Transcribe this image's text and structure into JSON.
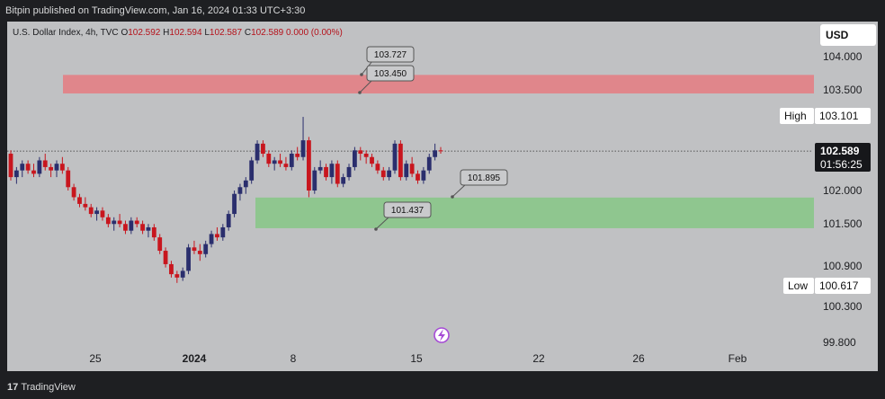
{
  "publisher_line": "Bitpin published on TradingView.com, Jan 16, 2024 01:33 UTC+3:30",
  "legend": {
    "symbol": "U.S. Dollar Index, 4h, TVC",
    "open_key": "O",
    "open": "102.592",
    "high_key": "H",
    "high": "102.594",
    "low_key": "L",
    "low": "102.587",
    "close_key": "C",
    "close": "102.589",
    "change": "0.000 (0.00%)"
  },
  "currency": "USD",
  "footer": {
    "logo_mark": "17",
    "logo_text": "TradingView"
  },
  "price_badges": {
    "high_label": "High",
    "high_value": "103.101",
    "current_value": "102.589",
    "countdown": "01:56:25",
    "low_label": "Low",
    "low_value": "100.617"
  },
  "colors": {
    "up": "#2a2e6d",
    "down": "#c8161e",
    "resistance_zone": "#e0868b",
    "support_zone": "#8fc68f",
    "badge_dark": "#16171a"
  },
  "chart_data": {
    "type": "candlestick",
    "y_axis_ticks": [
      "104.000",
      "103.500",
      "102.000",
      "101.500",
      "100.900",
      "100.300",
      "99.800"
    ],
    "x_axis_ticks": [
      "25",
      "2024",
      "8",
      "15",
      "22",
      "26",
      "Feb"
    ],
    "ylim": [
      99.6,
      104.3
    ],
    "zones": [
      {
        "kind": "resistance",
        "from": 103.45,
        "to": 103.727
      },
      {
        "kind": "support",
        "from": 101.437,
        "to": 101.895
      }
    ],
    "annotations": [
      "103.727",
      "103.450",
      "101.895",
      "101.437"
    ],
    "candles": [
      [
        102.55,
        102.6,
        102.15,
        102.2
      ],
      [
        102.2,
        102.35,
        102.1,
        102.3
      ],
      [
        102.3,
        102.45,
        102.2,
        102.4
      ],
      [
        102.4,
        102.45,
        102.25,
        102.3
      ],
      [
        102.3,
        102.4,
        102.2,
        102.25
      ],
      [
        102.25,
        102.5,
        102.2,
        102.45
      ],
      [
        102.45,
        102.55,
        102.3,
        102.35
      ],
      [
        102.35,
        102.4,
        102.2,
        102.3
      ],
      [
        102.3,
        102.45,
        102.2,
        102.4
      ],
      [
        102.4,
        102.5,
        102.25,
        102.3
      ],
      [
        102.3,
        102.35,
        102.0,
        102.05
      ],
      [
        102.05,
        102.1,
        101.85,
        101.9
      ],
      [
        101.9,
        101.95,
        101.75,
        101.8
      ],
      [
        101.8,
        101.9,
        101.7,
        101.75
      ],
      [
        101.75,
        101.8,
        101.6,
        101.65
      ],
      [
        101.65,
        101.75,
        101.55,
        101.7
      ],
      [
        101.7,
        101.75,
        101.55,
        101.6
      ],
      [
        101.6,
        101.65,
        101.45,
        101.5
      ],
      [
        101.5,
        101.6,
        101.4,
        101.55
      ],
      [
        101.55,
        101.65,
        101.45,
        101.5
      ],
      [
        101.5,
        101.55,
        101.35,
        101.4
      ],
      [
        101.4,
        101.6,
        101.35,
        101.55
      ],
      [
        101.55,
        101.6,
        101.45,
        101.5
      ],
      [
        101.5,
        101.55,
        101.35,
        101.4
      ],
      [
        101.4,
        101.5,
        101.3,
        101.45
      ],
      [
        101.45,
        101.5,
        101.25,
        101.3
      ],
      [
        101.3,
        101.35,
        101.05,
        101.1
      ],
      [
        101.1,
        101.15,
        100.85,
        100.9
      ],
      [
        100.9,
        100.95,
        100.7,
        100.75
      ],
      [
        100.75,
        100.8,
        100.62,
        100.7
      ],
      [
        100.7,
        100.85,
        100.65,
        100.8
      ],
      [
        100.8,
        101.2,
        100.75,
        101.15
      ],
      [
        101.15,
        101.25,
        101.05,
        101.1
      ],
      [
        101.1,
        101.2,
        100.95,
        101.05
      ],
      [
        101.05,
        101.25,
        101.0,
        101.2
      ],
      [
        101.2,
        101.4,
        101.15,
        101.35
      ],
      [
        101.35,
        101.45,
        101.25,
        101.3
      ],
      [
        101.3,
        101.5,
        101.25,
        101.45
      ],
      [
        101.45,
        101.7,
        101.4,
        101.65
      ],
      [
        101.65,
        102.0,
        101.6,
        101.95
      ],
      [
        101.95,
        102.1,
        101.85,
        102.05
      ],
      [
        102.05,
        102.2,
        101.95,
        102.15
      ],
      [
        102.15,
        102.5,
        102.1,
        102.45
      ],
      [
        102.45,
        102.75,
        102.4,
        102.7
      ],
      [
        102.7,
        102.75,
        102.5,
        102.55
      ],
      [
        102.55,
        102.6,
        102.35,
        102.4
      ],
      [
        102.4,
        102.5,
        102.3,
        102.45
      ],
      [
        102.45,
        102.55,
        102.35,
        102.4
      ],
      [
        102.4,
        102.5,
        102.3,
        102.35
      ],
      [
        102.35,
        102.6,
        102.3,
        102.55
      ],
      [
        102.55,
        102.65,
        102.45,
        102.5
      ],
      [
        102.5,
        103.1,
        102.45,
        102.75
      ],
      [
        102.75,
        102.8,
        101.9,
        102.0
      ],
      [
        102.0,
        102.35,
        101.95,
        102.3
      ],
      [
        102.3,
        102.45,
        102.25,
        102.35
      ],
      [
        102.35,
        102.4,
        102.15,
        102.2
      ],
      [
        102.2,
        102.45,
        102.1,
        102.4
      ],
      [
        102.4,
        102.45,
        102.05,
        102.1
      ],
      [
        102.1,
        102.25,
        102.05,
        102.2
      ],
      [
        102.2,
        102.4,
        102.15,
        102.35
      ],
      [
        102.35,
        102.65,
        102.3,
        102.6
      ],
      [
        102.6,
        102.65,
        102.45,
        102.55
      ],
      [
        102.55,
        102.6,
        102.4,
        102.5
      ],
      [
        102.5,
        102.55,
        102.35,
        102.4
      ],
      [
        102.4,
        102.45,
        102.25,
        102.3
      ],
      [
        102.3,
        102.35,
        102.15,
        102.2
      ],
      [
        102.2,
        102.35,
        102.15,
        102.3
      ],
      [
        102.3,
        102.75,
        102.25,
        102.7
      ],
      [
        102.7,
        102.75,
        102.15,
        102.2
      ],
      [
        102.2,
        102.45,
        102.15,
        102.4
      ],
      [
        102.4,
        102.5,
        102.2,
        102.25
      ],
      [
        102.25,
        102.3,
        102.1,
        102.15
      ],
      [
        102.15,
        102.35,
        102.1,
        102.3
      ],
      [
        102.3,
        102.55,
        102.25,
        102.5
      ],
      [
        102.5,
        102.7,
        102.45,
        102.6
      ],
      [
        102.6,
        102.65,
        102.55,
        102.59
      ]
    ]
  }
}
